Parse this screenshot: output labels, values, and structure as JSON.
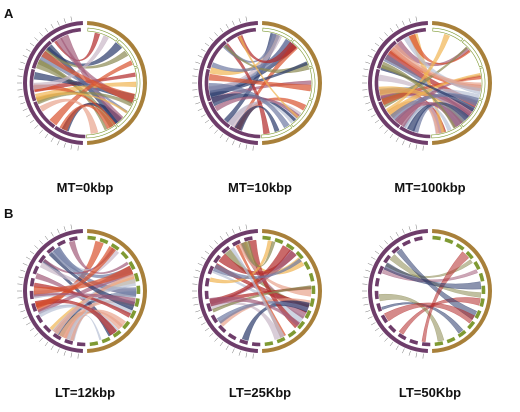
{
  "figure": {
    "panels": [
      {
        "label": "A",
        "plots": [
          {
            "caption": "MT=0kbp",
            "density": "medium"
          },
          {
            "caption": "MT=10kbp",
            "density": "medium"
          },
          {
            "caption": "MT=100kbp",
            "density": "high"
          }
        ]
      },
      {
        "label": "B",
        "plots": [
          {
            "caption": "LT=12kbp",
            "density": "high"
          },
          {
            "caption": "LT=25Kbp",
            "density": "medium"
          },
          {
            "caption": "LT=50Kbp",
            "density": "low"
          }
        ]
      }
    ],
    "colors": {
      "outer_ring": "#a8803a",
      "left_ring": "#6e3d6a",
      "inner_ring": "#7f9a33",
      "ribbons": [
        "#d9532f",
        "#f1b553",
        "#8c8a52",
        "#2b3b6b",
        "#a35d7a",
        "#b9c2d6",
        "#e8a48d",
        "#6f7aa3",
        "#b22a2a",
        "#c9b8c8"
      ]
    }
  }
}
